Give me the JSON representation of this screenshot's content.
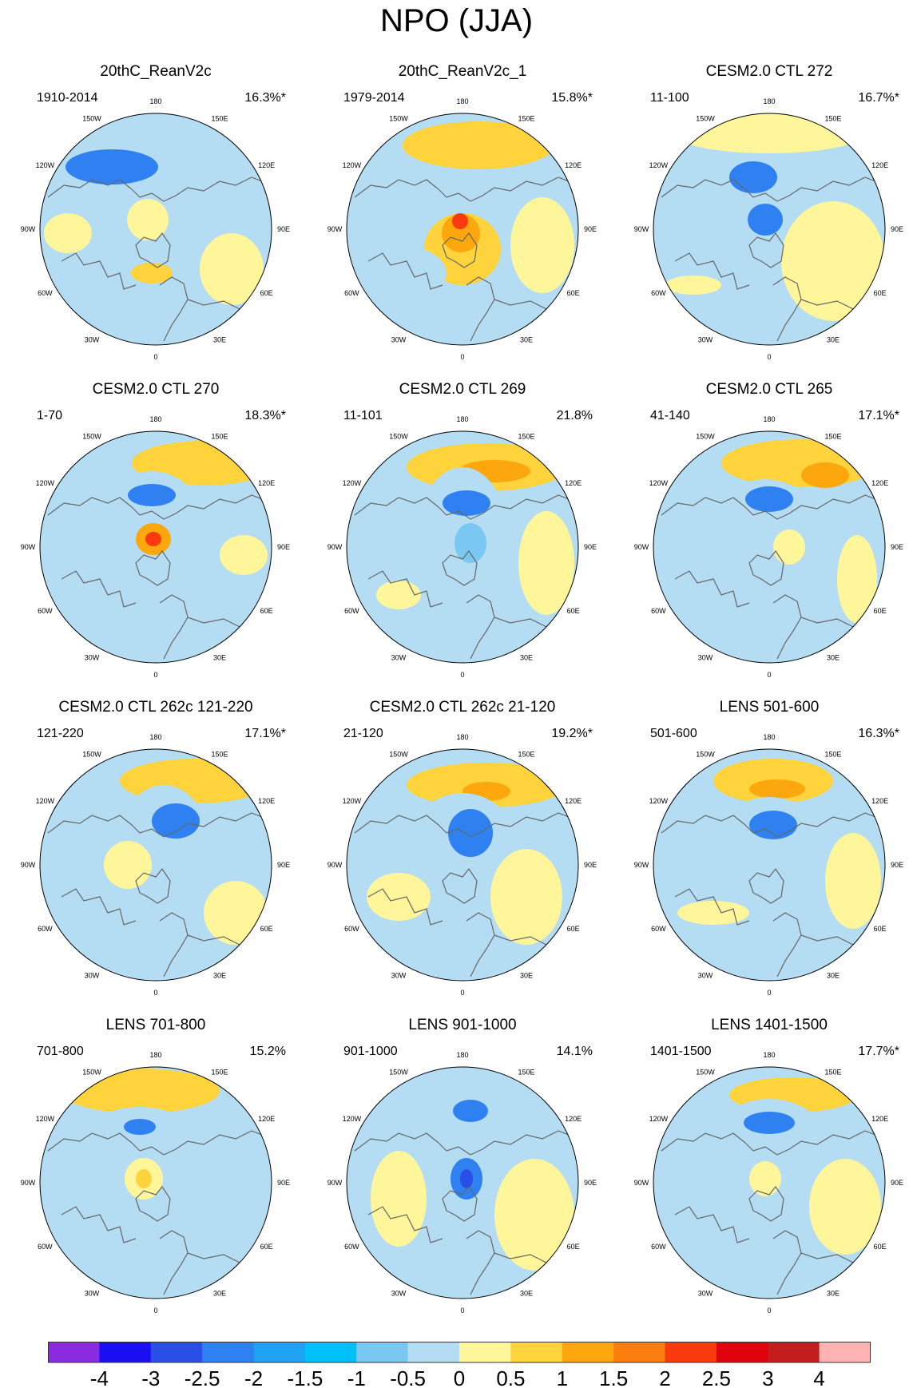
{
  "title": "NPO (JJA)",
  "longitude_labels": [
    "180",
    "150E",
    "120E",
    "90E",
    "60E",
    "30E",
    "0",
    "30W",
    "60W",
    "90W",
    "120W",
    "150W"
  ],
  "panels": [
    {
      "title": "20thC_ReanV2c",
      "years": "1910-2014",
      "percent": "16.3%*"
    },
    {
      "title": "20thC_ReanV2c_1",
      "years": "1979-2014",
      "percent": "15.8%*"
    },
    {
      "title": "CESM2.0 CTL 272",
      "years": "11-100",
      "percent": "16.7%*"
    },
    {
      "title": "CESM2.0 CTL 270",
      "years": "1-70",
      "percent": "18.3%*"
    },
    {
      "title": "CESM2.0 CTL 269",
      "years": "11-101",
      "percent": "21.8%"
    },
    {
      "title": "CESM2.0 CTL 265",
      "years": "41-140",
      "percent": "17.1%*"
    },
    {
      "title": "CESM2.0 CTL 262c 121-220",
      "years": "121-220",
      "percent": "17.1%*"
    },
    {
      "title": "CESM2.0 CTL 262c 21-120",
      "years": "21-120",
      "percent": "19.2%*"
    },
    {
      "title": "LENS 501-600",
      "years": "501-600",
      "percent": "16.3%*"
    },
    {
      "title": "LENS 701-800",
      "years": "701-800",
      "percent": "15.2%"
    },
    {
      "title": "LENS 901-1000",
      "years": "901-1000",
      "percent": "14.1%"
    },
    {
      "title": "LENS 1401-1500",
      "years": "1401-1500",
      "percent": "17.7%*"
    }
  ],
  "colorbar": {
    "labels": [
      "-4",
      "-3",
      "-2.5",
      "-2",
      "-1.5",
      "-1",
      "-0.5",
      "0",
      "0.5",
      "1",
      "1.5",
      "2",
      "2.5",
      "3",
      "4"
    ],
    "colors": [
      "#8a2be2",
      "#1a0ff0",
      "#2a4fe6",
      "#2f80f0",
      "#1fa2f2",
      "#00c0f8",
      "#7ac8f2",
      "#b4dcf2",
      "#fff59a",
      "#fed33b",
      "#fca70d",
      "#fb7d0d",
      "#f93a0f",
      "#e0020c",
      "#c41d1d",
      "#ffb2b2"
    ]
  },
  "palette": {
    "pos1": "#fff59a",
    "pos2": "#fed33b",
    "pos3": "#fca70d",
    "pos4": "#fb7d0d",
    "pos5": "#f93a0f",
    "neg1": "#b4dcf2",
    "neg2": "#7ac8f2",
    "neg3": "#2f80f0",
    "neg4": "#2a4fe6",
    "coast": "#666666"
  }
}
